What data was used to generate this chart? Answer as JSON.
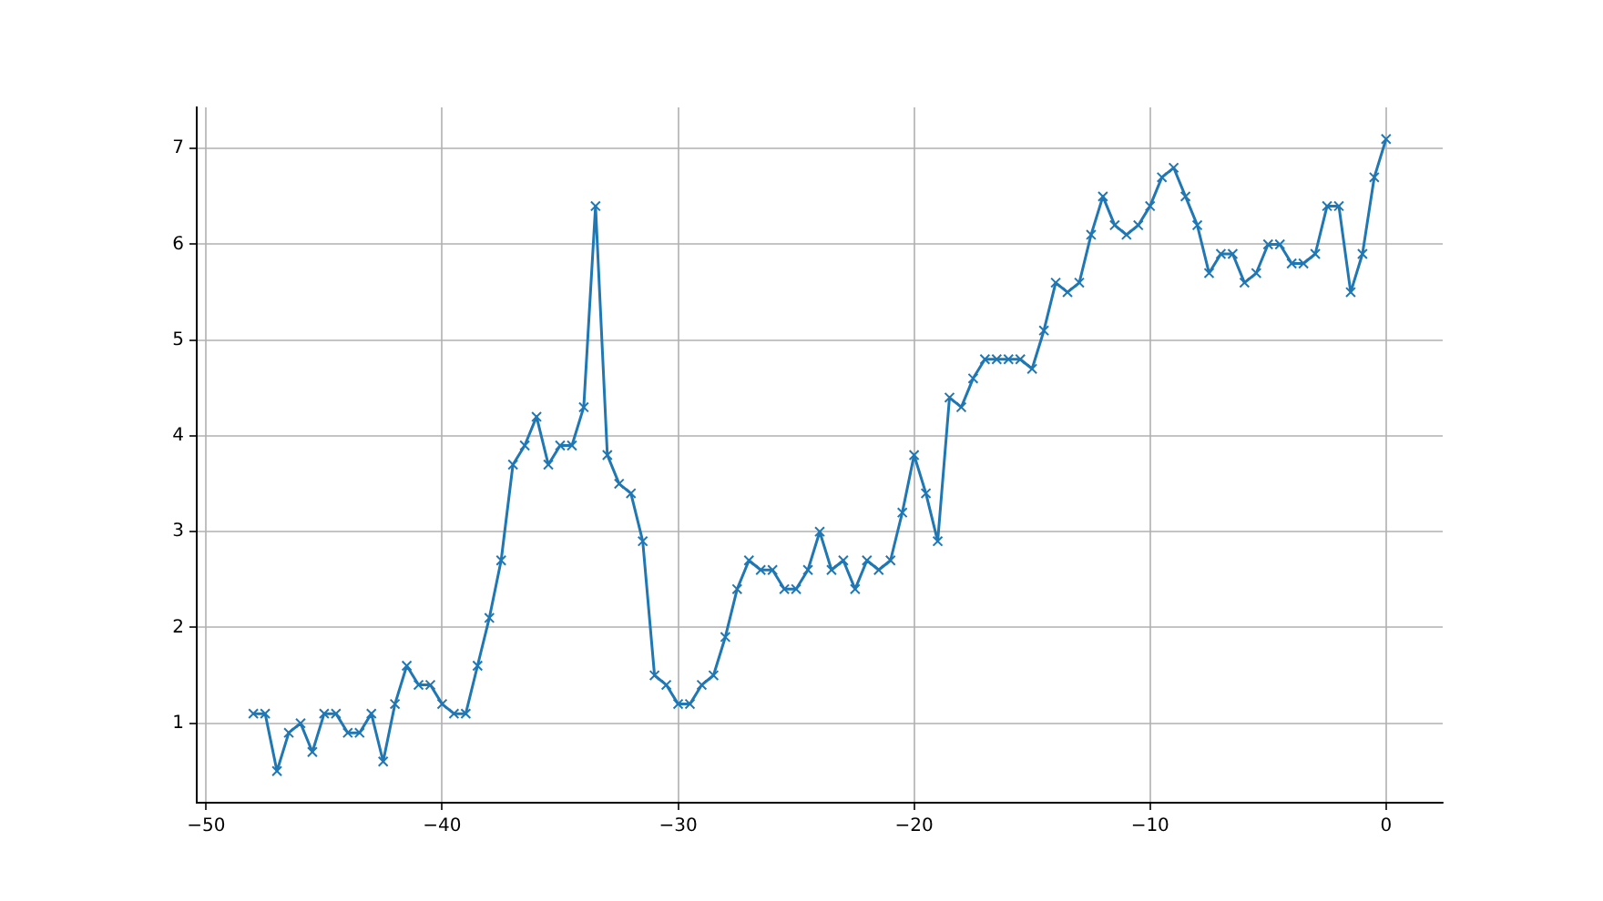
{
  "chart_data": {
    "type": "line",
    "x": [
      -48,
      -47.5,
      -47,
      -46.5,
      -46,
      -45.5,
      -45,
      -44.5,
      -44,
      -43.5,
      -43,
      -42.5,
      -42,
      -41.5,
      -41,
      -40.5,
      -40,
      -39.5,
      -39,
      -38.5,
      -38,
      -37.5,
      -37,
      -36.5,
      -36,
      -35.5,
      -35,
      -34.5,
      -34,
      -33.5,
      -33,
      -32.5,
      -32,
      -31.5,
      -31,
      -30.5,
      -30,
      -29.5,
      -29,
      -28.5,
      -28,
      -27.5,
      -27,
      -26.5,
      -26,
      -25.5,
      -25,
      -24.5,
      -24,
      -23.5,
      -23,
      -22.5,
      -22,
      -21.5,
      -21,
      -20.5,
      -20,
      -19.5,
      -19,
      -18.5,
      -18,
      -17.5,
      -17,
      -16.5,
      -16,
      -15.5,
      -15,
      -14.5,
      -14,
      -13.5,
      -13,
      -12.5,
      -12,
      -11.5,
      -11,
      -10.5,
      -10,
      -9.5,
      -9,
      -8.5,
      -8,
      -7.5,
      -7,
      -6.5,
      -6,
      -5.5,
      -5,
      -4.5,
      -4,
      -3.5,
      -3,
      -2.5,
      -2,
      -1.5,
      -1,
      -0.5,
      0
    ],
    "series": [
      {
        "color": "#1f77b4",
        "values": [
          1.1,
          1.1,
          0.5,
          0.9,
          1.0,
          0.7,
          1.1,
          1.1,
          0.9,
          0.9,
          1.1,
          0.6,
          1.2,
          1.6,
          1.4,
          1.4,
          1.2,
          1.1,
          1.1,
          1.6,
          2.1,
          2.7,
          3.7,
          3.9,
          4.2,
          3.7,
          3.9,
          3.9,
          4.3,
          6.4,
          3.8,
          3.5,
          3.4,
          2.9,
          1.5,
          1.4,
          1.2,
          1.2,
          1.4,
          1.5,
          1.9,
          2.4,
          2.7,
          2.6,
          2.6,
          2.4,
          2.4,
          2.6,
          3.0,
          2.6,
          2.7,
          2.4,
          2.7,
          2.6,
          2.7,
          3.2,
          3.8,
          3.4,
          2.9,
          4.4,
          4.3,
          4.6,
          4.8,
          4.8,
          4.8,
          4.8,
          4.7,
          5.1,
          5.6,
          5.5,
          5.6,
          6.1,
          6.5,
          6.2,
          6.1,
          6.2,
          6.4,
          6.7,
          6.8,
          6.5,
          6.2,
          5.7,
          5.9,
          5.9,
          5.6,
          5.7,
          6.0,
          6.0,
          5.8,
          5.8,
          5.9,
          6.4,
          6.4,
          5.5,
          5.9,
          6.7,
          7.1
        ]
      }
    ],
    "xlim": [
      -50.4,
      2.4
    ],
    "xticks": [
      -50,
      -40,
      -30,
      -20,
      -10,
      0
    ],
    "ylim": [
      0.17,
      7.43
    ],
    "yticks": [
      1,
      2,
      3,
      4,
      5,
      6,
      7
    ],
    "grid": true,
    "legend": false,
    "marker": "cross",
    "line_style": "solid"
  }
}
